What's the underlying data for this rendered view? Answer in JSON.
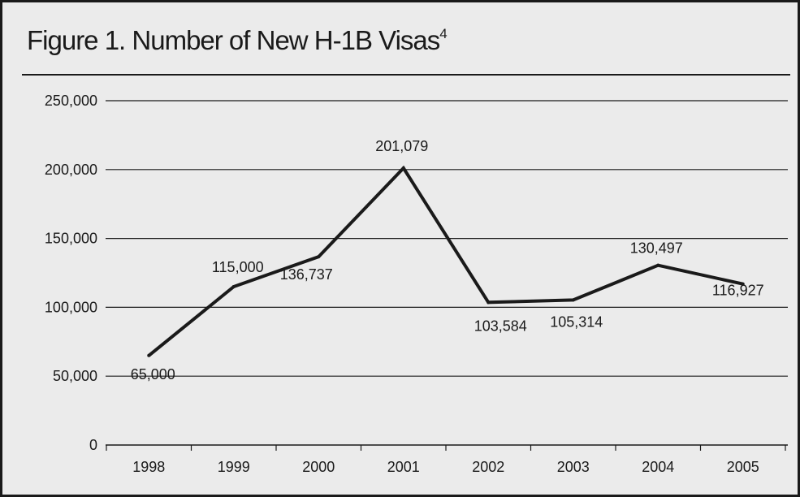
{
  "chart": {
    "title": "Figure 1. Number of New H-1B Visas",
    "title_superscript": "4"
  },
  "chart_data": {
    "type": "line",
    "title": "Figure 1. Number of New H-1B Visas",
    "categories": [
      "1998",
      "1999",
      "2000",
      "2001",
      "2002",
      "2003",
      "2004",
      "2005"
    ],
    "series": [
      {
        "values": [
          65000,
          115000,
          136737,
          201079,
          103584,
          105314,
          130497,
          116927
        ]
      }
    ],
    "data_labels": [
      "65,000",
      "115,000",
      "136,737",
      "201,079",
      "103,584",
      "105,314",
      "130,497",
      "116,927"
    ],
    "y_tick_values": [
      0,
      50000,
      100000,
      150000,
      200000,
      250000
    ],
    "y_tick_labels": [
      "0",
      "50,000",
      "100,000",
      "150,000",
      "200,000",
      "250,000"
    ],
    "xlabel": "",
    "ylabel": "",
    "ylim": [
      0,
      250000
    ],
    "grid": "horizontal",
    "legend": "none",
    "colors": {
      "line": "#1a1a1a",
      "grid": "#1a1a1a",
      "background": "#ebebeb"
    }
  }
}
